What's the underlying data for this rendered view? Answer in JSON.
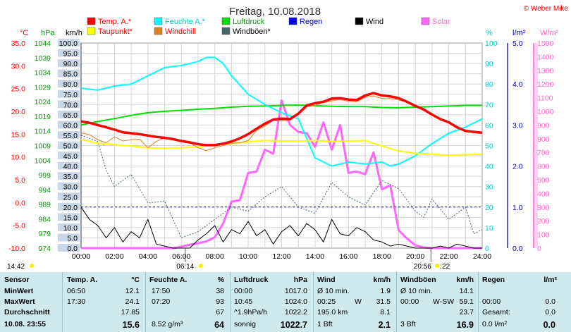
{
  "chart_data": {
    "type": "line",
    "title": "Freitag, 10.08.2018",
    "credit": "© Weber Mike",
    "x_axis": {
      "ticks": [
        "00:00",
        "02:00",
        "04:00",
        "06:00",
        "08:00",
        "10:00",
        "12:00",
        "14:00",
        "16:00",
        "18:00",
        "20:00",
        "22:00",
        "24:00"
      ],
      "xlim_hours": [
        0,
        24
      ]
    },
    "axes": {
      "celsius": {
        "label": "°C",
        "color": "#ff0000",
        "ticks": [
          "35.0",
          "30.0",
          "25.0",
          "20.0",
          "15.0",
          "10.0",
          "5.0",
          "0.0",
          "-5.0",
          "-10.0"
        ],
        "ylim": [
          -10,
          35
        ]
      },
      "hpa": {
        "label": "hPa",
        "color": "#00a000",
        "ticks": [
          "1044",
          "1039",
          "1034",
          "1029",
          "1024",
          "1019",
          "1014",
          "1009",
          "1004",
          "999",
          "994",
          "989",
          "984",
          "979",
          "974"
        ],
        "ylim": [
          974,
          1044
        ]
      },
      "kmh": {
        "label": "km/h",
        "color": "#000000",
        "ticks": [
          "100.0",
          "95.0",
          "90.0",
          "85.0",
          "80.0",
          "75.0",
          "70.0",
          "65.0",
          "60.0",
          "55.0",
          "50.0",
          "45.0",
          "40.0",
          "35.0",
          "30.0",
          "25.0",
          "20.0",
          "15.0",
          "10.0",
          "5.0",
          "0.0"
        ],
        "ylim": [
          0,
          100
        ]
      },
      "percent": {
        "label": "%",
        "color": "#00cccc",
        "ticks": [
          "100",
          "90",
          "80",
          "70",
          "60",
          "50",
          "40",
          "30",
          "20",
          "10",
          "0"
        ],
        "ylim": [
          0,
          100
        ]
      },
      "rain": {
        "label": "l/m²",
        "color": "#0000aa",
        "ticks": [
          "5.0",
          "4.0",
          "3.0",
          "2.0",
          "1.0",
          "0.0"
        ],
        "ylim": [
          0,
          5
        ]
      },
      "solar": {
        "label": "W/m²",
        "color": "#ff66cc",
        "ticks": [
          "1500",
          "1400",
          "1300",
          "1200",
          "1100",
          "1000",
          "900",
          "800",
          "700",
          "600",
          "500",
          "400",
          "300",
          "200",
          "100",
          "0"
        ],
        "ylim": [
          0,
          1500
        ]
      }
    },
    "legend": [
      {
        "name": "Temp. A.*",
        "color": "#ff0000",
        "text_color": "#ff0000"
      },
      {
        "name": "Feuchte A.*",
        "color": "#00ffff",
        "text_color": "#00cccc"
      },
      {
        "name": "Luftdruck",
        "color": "#00dd00",
        "text_color": "#00a000"
      },
      {
        "name": "Regen",
        "color": "#0000ff",
        "text_color": "#0000cc"
      },
      {
        "name": "Wind",
        "color": "#000000",
        "text_color": "#000000"
      },
      {
        "name": "Solar",
        "color": "#ff66ff",
        "text_color": "#ff66cc"
      },
      {
        "name": "Taupunkt*",
        "color": "#ffff00",
        "text_color": "#ff0000"
      },
      {
        "name": "Windchill",
        "color": "#e08020",
        "text_color": "#ff0000"
      },
      {
        "name": "Windböen*",
        "color": "#446666",
        "text_color": "#000000"
      }
    ],
    "series": [
      {
        "name": "Temp. A.*",
        "axis": "celsius",
        "color": "#ff0000",
        "x": [
          0,
          0.5,
          1,
          1.5,
          2,
          2.5,
          3,
          3.5,
          4,
          4.5,
          5,
          5.5,
          6,
          6.5,
          7,
          7.5,
          8,
          8.5,
          9,
          9.5,
          10,
          10.5,
          11,
          11.5,
          12,
          12.5,
          13,
          13.5,
          14,
          14.5,
          15,
          15.5,
          16,
          16.5,
          17,
          17.5,
          18,
          18.5,
          19,
          19.5,
          20,
          20.5,
          21,
          21.5,
          22,
          22.5,
          23,
          23.5,
          24
        ],
        "values": [
          17.8,
          17.5,
          17.0,
          16.5,
          16.0,
          15.4,
          15.2,
          15.0,
          14.7,
          14.4,
          14.2,
          13.9,
          13.5,
          13.2,
          12.8,
          12.6,
          12.6,
          12.9,
          13.4,
          14.1,
          15.0,
          16.2,
          17.3,
          18.2,
          18.4,
          18.3,
          19.5,
          21.3,
          21.8,
          22.1,
          22.8,
          22.9,
          22.6,
          22.5,
          23.5,
          24.0,
          23.5,
          23.3,
          22.9,
          22.1,
          21.2,
          20.4,
          19.3,
          18.3,
          17.6,
          16.5,
          15.7,
          15.5,
          15.3
        ]
      },
      {
        "name": "Feuchte A.*",
        "axis": "percent",
        "color": "#00ffff",
        "x": [
          0,
          1,
          2,
          3,
          4,
          5,
          6,
          7,
          7.5,
          8,
          8.5,
          9,
          10,
          11,
          12,
          13,
          14,
          15,
          16,
          17,
          18,
          18.5,
          19,
          20,
          21,
          22,
          23,
          24
        ],
        "values": [
          78,
          77,
          79,
          80,
          84,
          88,
          89,
          91,
          93,
          93,
          90,
          84,
          75,
          70,
          66,
          63,
          44,
          40,
          42,
          41,
          42,
          40,
          41,
          45,
          51,
          56,
          59,
          63
        ]
      },
      {
        "name": "Luftdruck",
        "axis": "hpa",
        "color": "#00dd00",
        "x": [
          0,
          1,
          2,
          3,
          4,
          5,
          6,
          7,
          8,
          9,
          10,
          11,
          12,
          13,
          14,
          15,
          16,
          17,
          18,
          19,
          20,
          21,
          22,
          23,
          24
        ],
        "values": [
          1016.0,
          1017.2,
          1018.2,
          1019.3,
          1020.2,
          1020.7,
          1021.0,
          1021.4,
          1021.7,
          1022.1,
          1022.4,
          1022.5,
          1022.7,
          1022.8,
          1022.6,
          1022.4,
          1022.3,
          1022.3,
          1022.0,
          1021.9,
          1022.1,
          1022.3,
          1022.5,
          1022.7,
          1022.7
        ]
      },
      {
        "name": "Taupunkt*",
        "axis": "celsius",
        "color": "#ffff00",
        "x": [
          0,
          1,
          2,
          3,
          4,
          5,
          6,
          7,
          8,
          9,
          10,
          11,
          12,
          13,
          14,
          15,
          16,
          17,
          18,
          19,
          20,
          21,
          22,
          23,
          24
        ],
        "values": [
          13.8,
          13.0,
          12.7,
          12.4,
          12.0,
          11.9,
          12.0,
          12.2,
          12.7,
          12.9,
          13.3,
          13.6,
          13.5,
          13.5,
          13.6,
          13.4,
          13.5,
          13.6,
          12.4,
          11.3,
          10.8,
          10.6,
          10.4,
          10.5,
          10.6
        ]
      },
      {
        "name": "Wind",
        "axis": "kmh",
        "color": "#000000",
        "x": [
          0,
          0.5,
          1,
          1.5,
          2,
          2.5,
          3,
          3.5,
          4,
          4.5,
          5,
          5.5,
          6,
          6.5,
          7,
          7.5,
          8,
          8.5,
          9,
          9.5,
          10,
          10.5,
          11,
          11.5,
          12,
          12.5,
          13,
          13.5,
          14,
          14.5,
          15,
          15.5,
          16,
          16.5,
          17,
          17.5,
          18,
          18.5,
          19,
          19.5,
          20,
          20.5,
          21,
          21.5,
          22,
          22.5,
          23,
          23.5,
          24
        ],
        "values": [
          20,
          14,
          11,
          5,
          10,
          3,
          8,
          5,
          14,
          2,
          1,
          0,
          0,
          0,
          4,
          7,
          11,
          3,
          9,
          7,
          13,
          6,
          9,
          2,
          8,
          11,
          6,
          12,
          9,
          3,
          14,
          7,
          6,
          10,
          8,
          4,
          3,
          1,
          2,
          1,
          0,
          0,
          0,
          1,
          0,
          2,
          1,
          0,
          0
        ]
      },
      {
        "name": "Windböen*",
        "axis": "kmh",
        "color": "#446666",
        "x": [
          0,
          1,
          1.5,
          2,
          3,
          4,
          5,
          6,
          7,
          8,
          9,
          10,
          11,
          12,
          13,
          14,
          15,
          16,
          17,
          18,
          19,
          20,
          20.5,
          21,
          22,
          23,
          23.5,
          24
        ],
        "values": [
          55,
          52,
          38,
          30,
          36,
          22,
          23,
          5,
          8,
          14,
          20,
          18,
          25,
          30,
          20,
          17,
          32,
          25,
          21,
          33,
          29,
          18,
          15,
          24,
          14,
          20,
          7,
          9
        ]
      },
      {
        "name": "Solar",
        "axis": "solar",
        "color": "#ff66ff",
        "x": [
          0,
          5.5,
          6,
          6.5,
          7,
          7.5,
          8,
          8.5,
          9,
          9.5,
          10,
          10.5,
          11,
          11.5,
          12,
          12.5,
          13,
          13.5,
          14,
          14.5,
          15,
          15.5,
          16,
          16.5,
          17,
          17.5,
          18,
          18.5,
          19,
          19.5,
          20,
          20.5,
          21,
          24
        ],
        "values": [
          0,
          0,
          10,
          25,
          35,
          50,
          80,
          180,
          340,
          350,
          550,
          560,
          720,
          690,
          1080,
          900,
          850,
          840,
          740,
          920,
          720,
          900,
          550,
          560,
          540,
          700,
          430,
          460,
          130,
          70,
          20,
          5,
          0,
          0
        ]
      },
      {
        "name": "Windchill",
        "axis": "celsius",
        "color": "#e08020",
        "x": [
          0,
          0.5,
          1,
          1.5,
          2,
          2.5,
          3,
          3.5,
          4,
          4.5,
          5,
          5.5,
          6,
          6.5,
          7,
          7.5,
          8,
          8.5,
          9,
          9.5,
          10,
          10.5,
          11,
          11.5,
          12,
          12.5,
          13,
          13.5,
          14,
          14.5,
          15,
          15.5,
          16,
          16.5,
          17,
          17.5,
          18,
          18.5,
          19,
          19.5,
          20,
          20.5,
          21,
          21.5,
          22,
          22.5,
          23,
          23.5,
          24
        ],
        "values": [
          15.3,
          14.9,
          13.8,
          13.1,
          14.4,
          13.5,
          13.8,
          13.9,
          12.0,
          13.4,
          14.2,
          13.9,
          13.5,
          13.2,
          12.0,
          11.4,
          12.0,
          12.5,
          13.0,
          13.1,
          13.6,
          15.8,
          16.8,
          18.0,
          17.9,
          18.1,
          19.3,
          21.0,
          21.3,
          22.0,
          22.3,
          22.6,
          22.2,
          22.1,
          23.1,
          23.4,
          22.8,
          22.8,
          22.5,
          22.0,
          21.1,
          20.3,
          19.2,
          18.2,
          17.5,
          16.4,
          15.6,
          15.4,
          15.2
        ]
      }
    ],
    "rain_line_value": 1.0,
    "bottom_markers": {
      "left_time": "14:42",
      "sunrise": "06:14",
      "sunset": "20:56",
      "right_time": ":22"
    }
  },
  "stats": {
    "headers": {
      "sensor": "Sensor",
      "temp": "Temp. A.",
      "temp_unit": "°C",
      "hum": "Feuchte A.",
      "hum_unit": "%",
      "press": "Luftdruck",
      "press_unit": "hPa",
      "wind": "Wind",
      "wind_unit": "km/h",
      "gust": "Windböen",
      "gust_unit": "km/h",
      "rain": "Regen",
      "rain_unit": "l/m²"
    },
    "rows": [
      {
        "label": "MinWert",
        "temp_time": "06:50",
        "temp_val": "12.1",
        "hum_time": "17:50",
        "hum_val": "38",
        "press_time": "00:00",
        "press_val": "1017.0",
        "wind_left": "Ø 10 min.",
        "wind_val": "1.9",
        "gust_left": "Ø 10 min.",
        "gust_val": "14.1",
        "rain_left": "",
        "rain_val": ""
      },
      {
        "label": "MaxWert",
        "temp_time": "17:30",
        "temp_val": "24.1",
        "hum_time": "07:20",
        "hum_val": "93",
        "press_time": "10:45",
        "press_val": "1024.0",
        "wind_left": "00:25",
        "wind_mid": "W",
        "wind_val": "31.5",
        "gust_left": "00:00",
        "gust_mid": "W-SW",
        "gust_val": "59.1",
        "rain_left": "00:00",
        "rain_val": "0.0"
      },
      {
        "label": "Durchschnitt",
        "temp_time": "",
        "temp_val": "17.85",
        "hum_time": "",
        "hum_val": "67",
        "press_time": "^1.9hPa/h",
        "press_val": "1022.2",
        "wind_left": "195.0 km",
        "wind_val": "8.1",
        "gust_left": "",
        "gust_val": "23.7",
        "rain_left": "Gesamt:",
        "rain_val": "0.0"
      },
      {
        "label": "10.08. 23:55",
        "temp_time": "",
        "temp_val": "15.6",
        "hum_time": "8.52 g/m³",
        "hum_val": "64",
        "press_time": "sonnig",
        "press_val": "1022.7",
        "wind_left": "1 Bft",
        "wind_val": "2.1",
        "gust_left": "3 Bft",
        "gust_val": "16.9",
        "rain_left": "0.0 l/m²",
        "rain_val": "0.0"
      }
    ]
  }
}
